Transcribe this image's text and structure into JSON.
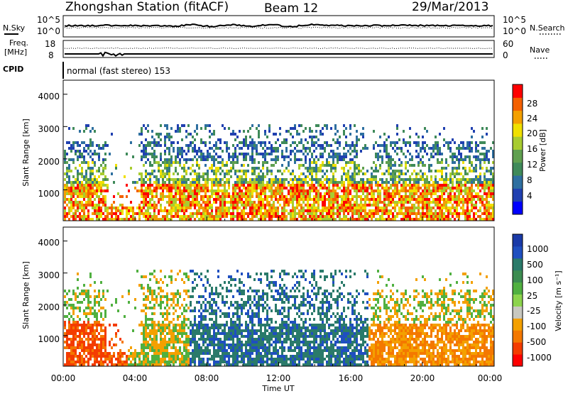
{
  "header": {
    "title": "Zhongshan Station (fitACF)",
    "beam": "Beam 12",
    "date": "29/Mar/2013"
  },
  "summary_panels": {
    "nsky_label": "N.Sky",
    "nsky_ticks": [
      "10^5",
      "10^0"
    ],
    "nsearch_label": "N.Search",
    "nsearch_ticks": [
      "10^5",
      "10^0"
    ],
    "freq_label_line1": "Freq.",
    "freq_label_line2": "[MHz]",
    "freq_ticks": [
      "18",
      "8"
    ],
    "nave_label": "Nave",
    "nave_ticks": [
      "60",
      "0"
    ],
    "cpid_label": "CPID",
    "cpid_text": "normal (fast stereo) 153"
  },
  "chart_data": [
    {
      "type": "heatmap",
      "name": "power",
      "ylabel": "Slant Range [km]",
      "xlabel": "",
      "yticks": [
        "4000",
        "3000",
        "2000",
        "1000"
      ],
      "xlim": [
        0,
        24
      ],
      "ylim": [
        180,
        4600
      ],
      "colorbar": {
        "label": "Power [dB]",
        "ticks": [
          "28",
          "24",
          "20",
          "16",
          "12",
          "8",
          "4"
        ],
        "colors": [
          "#0000ff",
          "#2040b0",
          "#2e6fa0",
          "#3f8a5a",
          "#60a050",
          "#a8cc30",
          "#f0e000",
          "#f4a000",
          "#f46000",
          "#ff0000"
        ]
      }
    },
    {
      "type": "heatmap",
      "name": "velocity",
      "ylabel": "Slant Range [km]",
      "xlabel": "Time UT",
      "yticks": [
        "4000",
        "3000",
        "2000",
        "1000"
      ],
      "xticks": [
        "00:00",
        "04:00",
        "08:00",
        "12:00",
        "16:00",
        "20:00",
        "00:00"
      ],
      "xlim": [
        0,
        24
      ],
      "ylim": [
        180,
        4600
      ],
      "colorbar": {
        "label": "Velocity [m s⁻¹]",
        "ticks": [
          "1000",
          "500",
          "100",
          "25",
          "-25",
          "-100",
          "-500",
          "-1000"
        ],
        "colors": [
          "#1a3aa8",
          "#1f4fc0",
          "#2a7a6a",
          "#3c8c50",
          "#50b040",
          "#8cd44c",
          "#c8c8c0",
          "#f4a000",
          "#f47800",
          "#f43c00",
          "#ff0000"
        ]
      }
    }
  ]
}
